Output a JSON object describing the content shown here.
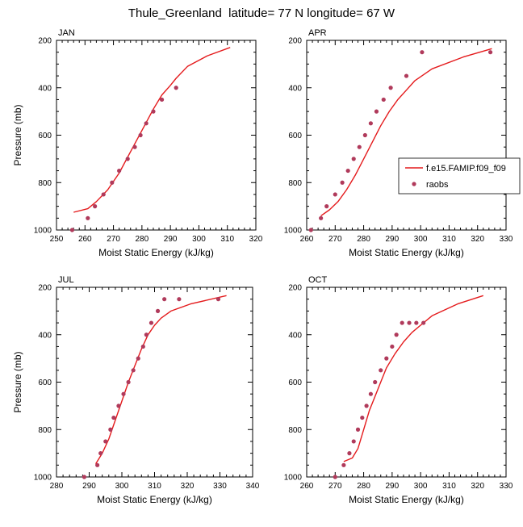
{
  "figure": {
    "title": "Thule_Greenland  latitude= 77 N longitude= 67 W"
  },
  "legend": {
    "model_label": "f.e15.FAMIP.f09_f09",
    "obs_label": "raobs",
    "model_color": "#e41a1c",
    "obs_color": "#b03a5b"
  },
  "chart_data": [
    {
      "type": "line",
      "panel": "JAN",
      "xlabel": "Moist Static Energy (kJ/kg)",
      "ylabel": "Pressure (mb)",
      "xlim": [
        250,
        320
      ],
      "xticks": [
        250,
        260,
        270,
        280,
        290,
        300,
        310,
        320
      ],
      "ylim": [
        1000,
        200
      ],
      "yticks": [
        200,
        400,
        600,
        800,
        1000
      ],
      "y_inverted": true,
      "series": [
        {
          "name": "f.e15.FAMIP.f09_f09",
          "kind": "line",
          "x": [
            256,
            261,
            264,
            268,
            272,
            276,
            280,
            284,
            287,
            290,
            292,
            296,
            303,
            311
          ],
          "y": [
            925,
            910,
            880,
            830,
            760,
            670,
            580,
            490,
            430,
            390,
            360,
            310,
            265,
            230
          ]
        },
        {
          "name": "raobs",
          "kind": "scatter",
          "x": [
            255.5,
            261,
            263.5,
            266.5,
            269.5,
            272,
            275,
            277.5,
            279.5,
            281.5,
            284,
            287,
            292
          ],
          "y": [
            1000,
            950,
            900,
            850,
            800,
            750,
            700,
            650,
            600,
            550,
            500,
            450,
            400
          ]
        }
      ]
    },
    {
      "type": "line",
      "panel": "APR",
      "xlabel": "Moist Static Energy (kJ/kg)",
      "ylabel": "",
      "xlim": [
        260,
        330
      ],
      "xticks": [
        260,
        270,
        280,
        290,
        300,
        310,
        320,
        330
      ],
      "ylim": [
        1000,
        200
      ],
      "yticks": [
        200,
        400,
        600,
        800,
        1000
      ],
      "y_inverted": true,
      "series": [
        {
          "name": "f.e15.FAMIP.f09_f09",
          "kind": "line",
          "x": [
            265,
            268,
            271,
            274,
            277,
            280,
            283,
            286,
            289,
            292,
            295,
            298,
            304,
            315,
            325
          ],
          "y": [
            940,
            915,
            880,
            830,
            770,
            700,
            630,
            560,
            500,
            450,
            410,
            370,
            320,
            270,
            235
          ]
        },
        {
          "name": "raobs",
          "kind": "scatter",
          "x": [
            261.5,
            265,
            267,
            270,
            272.5,
            274.5,
            276.5,
            278.5,
            280.5,
            282.5,
            284.5,
            287,
            289.5,
            295,
            300.5,
            324.5
          ],
          "y": [
            1000,
            950,
            900,
            850,
            800,
            750,
            700,
            650,
            600,
            550,
            500,
            450,
            400,
            350,
            250,
            250
          ]
        }
      ]
    },
    {
      "type": "line",
      "panel": "JUL",
      "xlabel": "Moist Static Energy (kJ/kg)",
      "ylabel": "Pressure (mb)",
      "xlim": [
        280,
        340
      ],
      "xticks": [
        280,
        290,
        300,
        310,
        320,
        330,
        340
      ],
      "ylim": [
        1000,
        200
      ],
      "yticks": [
        200,
        400,
        600,
        800,
        1000
      ],
      "y_inverted": true,
      "series": [
        {
          "name": "f.e15.FAMIP.f09_f09",
          "kind": "line",
          "x": [
            292,
            294,
            296,
            298,
            300,
            302,
            304,
            306,
            308,
            310,
            312,
            315,
            321,
            332
          ],
          "y": [
            945,
            900,
            840,
            760,
            680,
            600,
            530,
            460,
            400,
            360,
            330,
            300,
            270,
            235
          ]
        },
        {
          "name": "raobs",
          "kind": "scatter",
          "x": [
            288.5,
            292.5,
            293.5,
            295,
            296.5,
            297.5,
            299,
            300.5,
            302,
            303.5,
            305,
            306.5,
            307.5,
            309,
            311,
            313,
            317.5,
            329.5
          ],
          "y": [
            1000,
            950,
            900,
            850,
            800,
            750,
            700,
            650,
            600,
            550,
            500,
            450,
            400,
            350,
            300,
            250,
            250,
            250
          ]
        }
      ]
    },
    {
      "type": "line",
      "panel": "OCT",
      "xlabel": "Moist Static Energy (kJ/kg)",
      "ylabel": "",
      "xlim": [
        260,
        330
      ],
      "xticks": [
        260,
        270,
        280,
        290,
        300,
        310,
        320,
        330
      ],
      "ylim": [
        1000,
        200
      ],
      "yticks": [
        200,
        400,
        600,
        800,
        1000
      ],
      "y_inverted": true,
      "series": [
        {
          "name": "f.e15.FAMIP.f09_f09",
          "kind": "line",
          "x": [
            273,
            276,
            278,
            280,
            282,
            284,
            286,
            288,
            291,
            294,
            297,
            300,
            304,
            313,
            322
          ],
          "y": [
            935,
            920,
            880,
            800,
            720,
            660,
            600,
            540,
            480,
            430,
            390,
            360,
            320,
            270,
            235
          ]
        },
        {
          "name": "raobs",
          "kind": "scatter",
          "x": [
            270,
            273,
            275,
            276.5,
            278,
            279.5,
            281,
            282.5,
            284,
            286,
            288,
            290,
            291.5,
            293.5,
            296,
            298.5,
            301
          ],
          "y": [
            1000,
            950,
            900,
            850,
            800,
            750,
            700,
            650,
            600,
            550,
            500,
            450,
            400,
            350,
            350,
            350,
            350
          ]
        }
      ]
    }
  ]
}
